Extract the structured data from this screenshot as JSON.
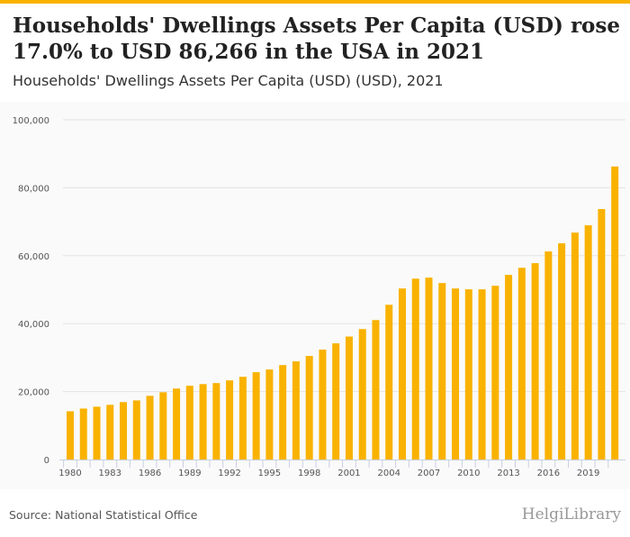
{
  "header": {
    "title": "Households' Dwellings Assets Per Capita (USD) rose 17.0% to USD 86,266 in the USA in 2021",
    "subtitle": "Households' Dwellings Assets Per Capita (USD) (USD), 2021"
  },
  "footer": {
    "source": "Source: National Statistical Office",
    "logo": "HelgiLibrary"
  },
  "colors": {
    "bar": "#f9b200",
    "accent": "#f9b200"
  },
  "chart_data": {
    "type": "bar",
    "title": "Households' Dwellings Assets Per Capita (USD) (USD), 2021",
    "xlabel": "",
    "ylabel": "",
    "ylim": [
      0,
      100000
    ],
    "yticks": [
      0,
      20000,
      40000,
      60000,
      80000,
      100000
    ],
    "ytick_labels": [
      "0",
      "20,000",
      "40,000",
      "60,000",
      "80,000",
      "100,000"
    ],
    "xtick_labels": [
      "1980",
      "1983",
      "1986",
      "1989",
      "1992",
      "1995",
      "1998",
      "2001",
      "2004",
      "2007",
      "2010",
      "2013",
      "2016",
      "2019"
    ],
    "categories": [
      1980,
      1981,
      1982,
      1983,
      1984,
      1985,
      1986,
      1987,
      1988,
      1989,
      1990,
      1991,
      1992,
      1993,
      1994,
      1995,
      1996,
      1997,
      1998,
      1999,
      2000,
      2001,
      2002,
      2003,
      2004,
      2005,
      2006,
      2007,
      2008,
      2009,
      2010,
      2011,
      2012,
      2013,
      2014,
      2015,
      2016,
      2017,
      2018,
      2019,
      2020,
      2021
    ],
    "values": [
      14200,
      15000,
      15550,
      16100,
      16900,
      17400,
      18750,
      19800,
      20900,
      21700,
      22200,
      22500,
      23300,
      24350,
      25700,
      26500,
      27800,
      28900,
      30500,
      32350,
      34200,
      36200,
      38400,
      41050,
      45550,
      50350,
      53250,
      53550,
      51950,
      50350,
      50100,
      50100,
      51150,
      54350,
      56450,
      57800,
      61250,
      63650,
      66800,
      68950,
      73731,
      86266
    ],
    "grid": true,
    "legend": "none"
  }
}
